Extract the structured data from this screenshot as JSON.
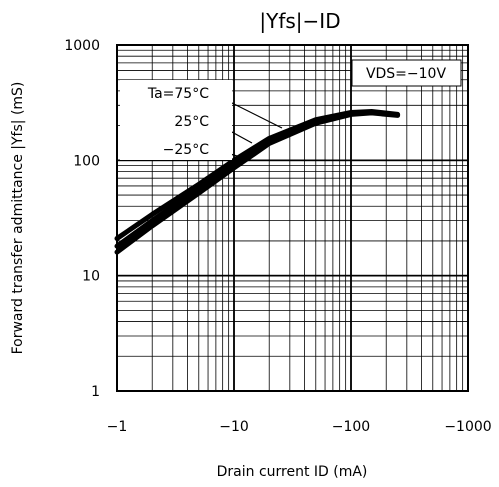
{
  "chart_data": {
    "type": "line",
    "title": "|Yfs|−ID",
    "xlabel": "Drain current ID (mA)",
    "ylabel": "Forward transfer admittance |Yfs| (mS)",
    "x_scale": "log",
    "y_scale": "log",
    "xlim": [
      -1,
      -1000
    ],
    "ylim": [
      1,
      1000
    ],
    "x_ticks": [
      -1,
      -10,
      -100,
      -1000
    ],
    "x_tick_labels": [
      "−1",
      "−10",
      "−100",
      "−1000"
    ],
    "y_ticks": [
      1,
      10,
      100,
      1000
    ],
    "y_tick_labels": [
      "1",
      "10",
      "100",
      "1000"
    ],
    "grid": true,
    "condition_label": "VDS=−10V",
    "series": [
      {
        "name": "Ta=75°C",
        "x": [
          -1,
          -2,
          -5,
          -10,
          -20,
          -50,
          -100,
          -150,
          -250
        ],
        "y": [
          21,
          34,
          62,
          100,
          155,
          225,
          260,
          265,
          250
        ]
      },
      {
        "name": "25°C",
        "x": [
          -1,
          -2,
          -5,
          -10,
          -20,
          -50,
          -100,
          -150,
          -250
        ],
        "y": [
          18,
          30,
          57,
          93,
          147,
          218,
          255,
          262,
          248
        ]
      },
      {
        "name": "−25°C",
        "x": [
          -1,
          -2,
          -5,
          -10,
          -20,
          -50,
          -100,
          -150,
          -250
        ],
        "y": [
          16,
          27,
          52,
          86,
          140,
          210,
          250,
          258,
          245
        ]
      }
    ]
  }
}
